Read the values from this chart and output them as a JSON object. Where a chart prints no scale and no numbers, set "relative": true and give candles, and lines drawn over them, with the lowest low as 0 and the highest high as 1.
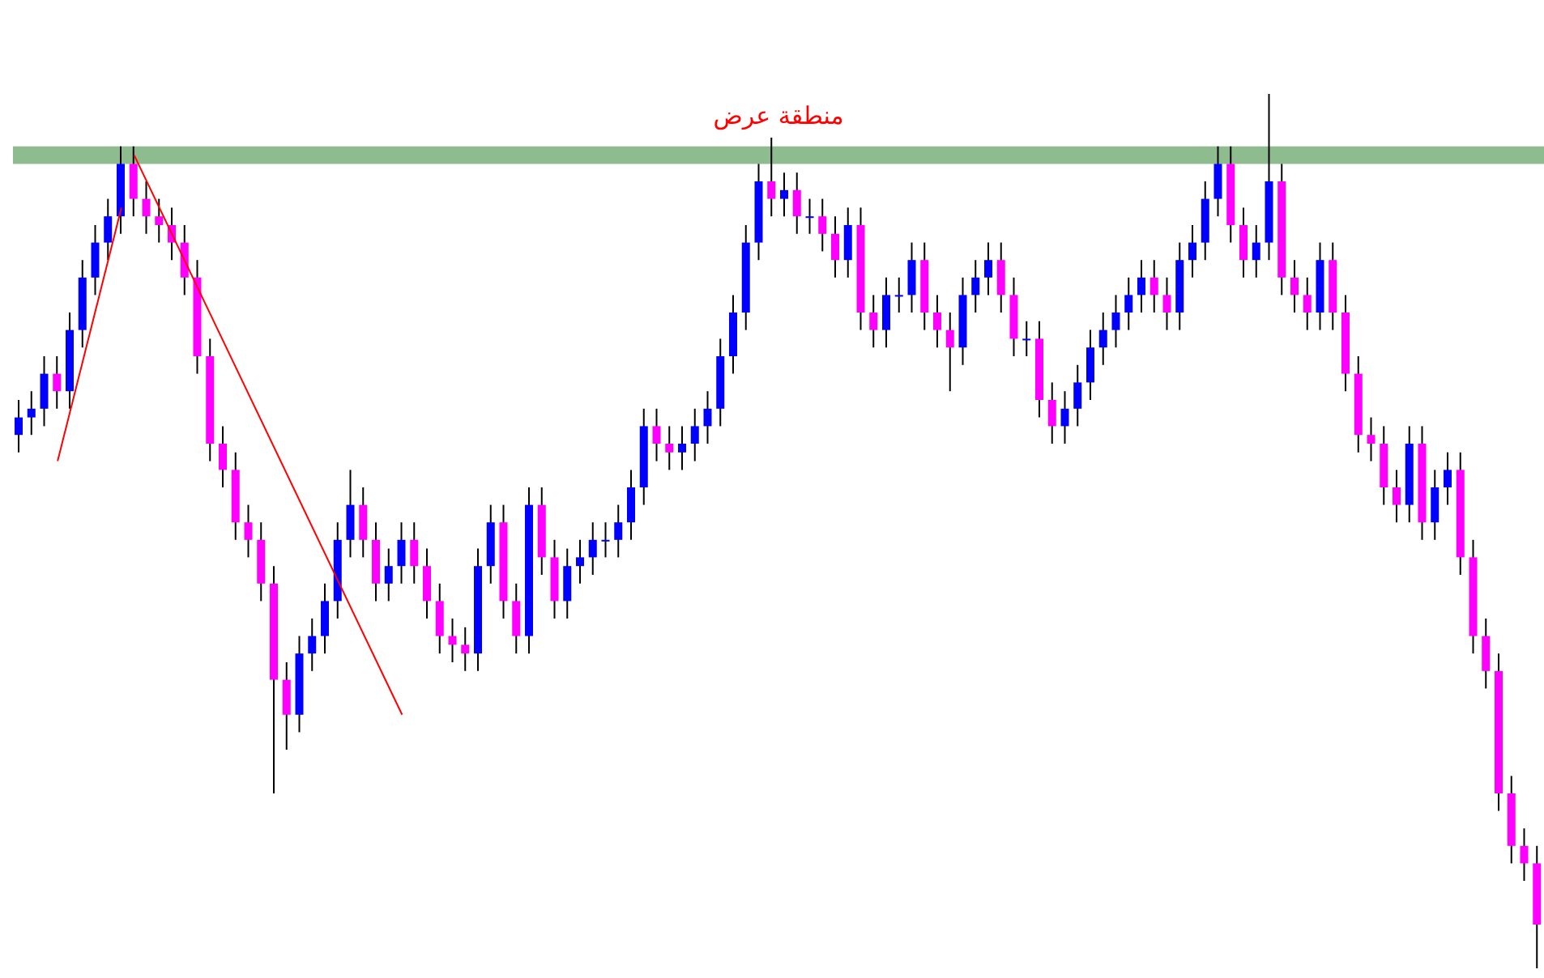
{
  "chart_data": {
    "type": "candlestick",
    "relative": true,
    "grid": false,
    "legend": false,
    "categories": [
      null,
      null,
      null,
      null,
      null,
      null,
      null,
      null,
      null,
      null,
      null,
      null,
      null,
      null,
      null,
      null,
      null,
      null,
      null,
      null,
      null,
      null,
      null,
      null,
      null,
      null,
      null,
      null,
      null,
      null,
      null,
      null,
      null,
      null,
      null,
      null,
      null,
      null,
      null,
      null,
      null,
      null,
      null,
      null,
      null,
      null,
      null,
      null,
      null,
      null,
      null,
      null,
      null,
      null,
      null,
      null,
      null,
      null,
      null,
      null,
      null,
      null,
      null,
      null,
      null,
      null,
      null,
      null,
      null,
      null,
      null,
      null,
      null,
      null,
      null,
      null,
      null,
      null,
      null,
      null,
      null,
      null,
      null,
      null,
      null,
      null,
      null,
      null,
      null,
      null,
      null,
      null,
      null,
      null,
      null,
      null,
      null,
      null,
      null,
      null,
      null,
      null,
      null,
      null,
      null,
      null,
      null,
      null,
      null,
      null,
      null,
      null,
      null,
      null,
      null,
      null,
      null,
      null,
      null,
      null
    ],
    "ohlc": [
      [
        0.61,
        0.65,
        0.59,
        0.63
      ],
      [
        0.63,
        0.66,
        0.61,
        0.64
      ],
      [
        0.64,
        0.7,
        0.62,
        0.68
      ],
      [
        0.68,
        0.7,
        0.64,
        0.66
      ],
      [
        0.66,
        0.75,
        0.64,
        0.73
      ],
      [
        0.73,
        0.81,
        0.71,
        0.79
      ],
      [
        0.79,
        0.85,
        0.77,
        0.83
      ],
      [
        0.83,
        0.88,
        0.81,
        0.86
      ],
      [
        0.86,
        0.94,
        0.84,
        0.92
      ],
      [
        0.92,
        0.94,
        0.86,
        0.88
      ],
      [
        0.88,
        0.9,
        0.84,
        0.86
      ],
      [
        0.86,
        0.88,
        0.83,
        0.85
      ],
      [
        0.85,
        0.87,
        0.81,
        0.83
      ],
      [
        0.83,
        0.85,
        0.77,
        0.79
      ],
      [
        0.79,
        0.81,
        0.68,
        0.7
      ],
      [
        0.7,
        0.72,
        0.58,
        0.6
      ],
      [
        0.6,
        0.62,
        0.55,
        0.57
      ],
      [
        0.57,
        0.59,
        0.49,
        0.51
      ],
      [
        0.51,
        0.53,
        0.47,
        0.49
      ],
      [
        0.49,
        0.51,
        0.42,
        0.44
      ],
      [
        0.44,
        0.46,
        0.2,
        0.33
      ],
      [
        0.33,
        0.35,
        0.25,
        0.29
      ],
      [
        0.29,
        0.38,
        0.27,
        0.36
      ],
      [
        0.36,
        0.4,
        0.34,
        0.38
      ],
      [
        0.38,
        0.44,
        0.36,
        0.42
      ],
      [
        0.42,
        0.51,
        0.4,
        0.49
      ],
      [
        0.49,
        0.57,
        0.47,
        0.53
      ],
      [
        0.53,
        0.55,
        0.47,
        0.49
      ],
      [
        0.49,
        0.51,
        0.42,
        0.44
      ],
      [
        0.44,
        0.48,
        0.42,
        0.46
      ],
      [
        0.46,
        0.51,
        0.44,
        0.49
      ],
      [
        0.49,
        0.51,
        0.44,
        0.46
      ],
      [
        0.46,
        0.48,
        0.4,
        0.42
      ],
      [
        0.42,
        0.44,
        0.36,
        0.38
      ],
      [
        0.38,
        0.4,
        0.35,
        0.37
      ],
      [
        0.37,
        0.39,
        0.34,
        0.36
      ],
      [
        0.36,
        0.48,
        0.34,
        0.46
      ],
      [
        0.46,
        0.53,
        0.44,
        0.51
      ],
      [
        0.51,
        0.53,
        0.4,
        0.42
      ],
      [
        0.42,
        0.44,
        0.36,
        0.38
      ],
      [
        0.38,
        0.55,
        0.36,
        0.53
      ],
      [
        0.53,
        0.55,
        0.45,
        0.47
      ],
      [
        0.47,
        0.49,
        0.4,
        0.42
      ],
      [
        0.42,
        0.48,
        0.4,
        0.46
      ],
      [
        0.46,
        0.49,
        0.44,
        0.47
      ],
      [
        0.47,
        0.51,
        0.45,
        0.49
      ],
      [
        0.49,
        0.51,
        0.47,
        0.49
      ],
      [
        0.49,
        0.53,
        0.47,
        0.51
      ],
      [
        0.51,
        0.57,
        0.49,
        0.55
      ],
      [
        0.55,
        0.64,
        0.53,
        0.62
      ],
      [
        0.62,
        0.64,
        0.58,
        0.6
      ],
      [
        0.6,
        0.62,
        0.57,
        0.59
      ],
      [
        0.59,
        0.62,
        0.57,
        0.6
      ],
      [
        0.6,
        0.64,
        0.58,
        0.62
      ],
      [
        0.62,
        0.66,
        0.6,
        0.64
      ],
      [
        0.64,
        0.72,
        0.62,
        0.7
      ],
      [
        0.7,
        0.77,
        0.68,
        0.75
      ],
      [
        0.75,
        0.85,
        0.73,
        0.83
      ],
      [
        0.83,
        0.92,
        0.81,
        0.9
      ],
      [
        0.9,
        0.95,
        0.86,
        0.88
      ],
      [
        0.88,
        0.91,
        0.86,
        0.89
      ],
      [
        0.89,
        0.91,
        0.84,
        0.86
      ],
      [
        0.86,
        0.88,
        0.84,
        0.86
      ],
      [
        0.86,
        0.88,
        0.82,
        0.84
      ],
      [
        0.84,
        0.86,
        0.79,
        0.81
      ],
      [
        0.81,
        0.87,
        0.79,
        0.85
      ],
      [
        0.85,
        0.87,
        0.73,
        0.75
      ],
      [
        0.75,
        0.77,
        0.71,
        0.73
      ],
      [
        0.73,
        0.79,
        0.71,
        0.77
      ],
      [
        0.77,
        0.79,
        0.75,
        0.77
      ],
      [
        0.77,
        0.83,
        0.75,
        0.81
      ],
      [
        0.81,
        0.83,
        0.73,
        0.75
      ],
      [
        0.75,
        0.77,
        0.71,
        0.73
      ],
      [
        0.73,
        0.75,
        0.66,
        0.71
      ],
      [
        0.71,
        0.79,
        0.69,
        0.77
      ],
      [
        0.77,
        0.81,
        0.75,
        0.79
      ],
      [
        0.79,
        0.83,
        0.77,
        0.81
      ],
      [
        0.81,
        0.83,
        0.75,
        0.77
      ],
      [
        0.77,
        0.79,
        0.7,
        0.72
      ],
      [
        0.72,
        0.74,
        0.7,
        0.72
      ],
      [
        0.72,
        0.74,
        0.63,
        0.65
      ],
      [
        0.65,
        0.67,
        0.6,
        0.62
      ],
      [
        0.62,
        0.66,
        0.6,
        0.64
      ],
      [
        0.64,
        0.69,
        0.62,
        0.67
      ],
      [
        0.67,
        0.73,
        0.65,
        0.71
      ],
      [
        0.71,
        0.75,
        0.69,
        0.73
      ],
      [
        0.73,
        0.77,
        0.71,
        0.75
      ],
      [
        0.75,
        0.79,
        0.73,
        0.77
      ],
      [
        0.77,
        0.81,
        0.75,
        0.79
      ],
      [
        0.79,
        0.81,
        0.75,
        0.77
      ],
      [
        0.77,
        0.79,
        0.73,
        0.75
      ],
      [
        0.75,
        0.83,
        0.73,
        0.81
      ],
      [
        0.81,
        0.85,
        0.79,
        0.83
      ],
      [
        0.83,
        0.9,
        0.81,
        0.88
      ],
      [
        0.88,
        0.94,
        0.86,
        0.92
      ],
      [
        0.92,
        0.94,
        0.83,
        0.85
      ],
      [
        0.85,
        0.87,
        0.79,
        0.81
      ],
      [
        0.81,
        0.85,
        0.79,
        0.83
      ],
      [
        0.83,
        1.0,
        0.81,
        0.9
      ],
      [
        0.9,
        0.92,
        0.77,
        0.79
      ],
      [
        0.79,
        0.81,
        0.75,
        0.77
      ],
      [
        0.77,
        0.79,
        0.73,
        0.75
      ],
      [
        0.75,
        0.83,
        0.73,
        0.81
      ],
      [
        0.81,
        0.83,
        0.73,
        0.75
      ],
      [
        0.75,
        0.77,
        0.66,
        0.68
      ],
      [
        0.68,
        0.7,
        0.59,
        0.61
      ],
      [
        0.61,
        0.63,
        0.58,
        0.6
      ],
      [
        0.6,
        0.62,
        0.53,
        0.55
      ],
      [
        0.55,
        0.57,
        0.51,
        0.53
      ],
      [
        0.53,
        0.62,
        0.51,
        0.6
      ],
      [
        0.6,
        0.62,
        0.49,
        0.51
      ],
      [
        0.51,
        0.57,
        0.49,
        0.55
      ],
      [
        0.55,
        0.59,
        0.53,
        0.57
      ],
      [
        0.57,
        0.59,
        0.45,
        0.47
      ],
      [
        0.47,
        0.49,
        0.36,
        0.38
      ],
      [
        0.38,
        0.4,
        0.32,
        0.34
      ],
      [
        0.34,
        0.36,
        0.18,
        0.2
      ],
      [
        0.2,
        0.22,
        0.12,
        0.14
      ],
      [
        0.14,
        0.16,
        0.1,
        0.12
      ],
      [
        0.12,
        0.14,
        0.0,
        0.05
      ]
    ],
    "colors": [
      "#0000ff",
      "#0000ff",
      "#0000ff",
      "#ff00ff",
      "#0000ff",
      "#0000ff",
      "#0000ff",
      "#0000ff",
      "#0000ff",
      "#ff00ff",
      "#ff00ff",
      "#ff00ff",
      "#ff00ff",
      "#ff00ff",
      "#ff00ff",
      "#ff00ff",
      "#ff00ff",
      "#ff00ff",
      "#ff00ff",
      "#ff00ff",
      "#ff00ff",
      "#ff00ff",
      "#0000ff",
      "#0000ff",
      "#0000ff",
      "#0000ff",
      "#0000ff",
      "#ff00ff",
      "#ff00ff",
      "#0000ff",
      "#0000ff",
      "#ff00ff",
      "#ff00ff",
      "#ff00ff",
      "#ff00ff",
      "#ff00ff",
      "#0000ff",
      "#0000ff",
      "#ff00ff",
      "#ff00ff",
      "#0000ff",
      "#ff00ff",
      "#ff00ff",
      "#0000ff",
      "#0000ff",
      "#0000ff",
      "#0000ff",
      "#0000ff",
      "#0000ff",
      "#0000ff",
      "#ff00ff",
      "#ff00ff",
      "#0000ff",
      "#0000ff",
      "#0000ff",
      "#0000ff",
      "#0000ff",
      "#0000ff",
      "#0000ff",
      "#ff00ff",
      "#0000ff",
      "#ff00ff",
      "#0000ff",
      "#ff00ff",
      "#ff00ff",
      "#0000ff",
      "#ff00ff",
      "#ff00ff",
      "#0000ff",
      "#0000ff",
      "#0000ff",
      "#ff00ff",
      "#ff00ff",
      "#ff00ff",
      "#0000ff",
      "#0000ff",
      "#0000ff",
      "#ff00ff",
      "#ff00ff",
      "#0000ff",
      "#ff00ff",
      "#ff00ff",
      "#0000ff",
      "#0000ff",
      "#0000ff",
      "#0000ff",
      "#0000ff",
      "#0000ff",
      "#0000ff",
      "#ff00ff",
      "#ff00ff",
      "#0000ff",
      "#0000ff",
      "#0000ff",
      "#0000ff",
      "#ff00ff",
      "#ff00ff",
      "#0000ff",
      "#0000ff",
      "#ff00ff",
      "#ff00ff",
      "#ff00ff",
      "#0000ff",
      "#ff00ff",
      "#ff00ff",
      "#ff00ff",
      "#ff00ff",
      "#ff00ff",
      "#ff00ff",
      "#0000ff",
      "#ff00ff",
      "#0000ff",
      "#0000ff",
      "#ff00ff",
      "#ff00ff",
      "#ff00ff",
      "#ff00ff",
      "#ff00ff",
      "#ff00ff",
      "#ff00ff"
    ],
    "series": [
      {
        "type": "line",
        "color": "#ff0000",
        "values": [
          null,
          null,
          null,
          0.58,
          null,
          null,
          null,
          null,
          0.87,
          null,
          null,
          null,
          null,
          null,
          null,
          null,
          null,
          null,
          null,
          null,
          null,
          null,
          null,
          null,
          null,
          null,
          null,
          null,
          null,
          null,
          null,
          null,
          null,
          null,
          null,
          null,
          null,
          null,
          null,
          null,
          null,
          null,
          null,
          null,
          null,
          null,
          null,
          null,
          null,
          null,
          null,
          null,
          null,
          null,
          null,
          null,
          null,
          null,
          null,
          null,
          null,
          null,
          null,
          null,
          null,
          null,
          null,
          null,
          null,
          null,
          null,
          null,
          null,
          null,
          null,
          null,
          null,
          null,
          null,
          null,
          null,
          null,
          null,
          null,
          null,
          null,
          null,
          null,
          null,
          null,
          null,
          null,
          null,
          null,
          null,
          null,
          null,
          null,
          null,
          null,
          null,
          null,
          null,
          null,
          null,
          null,
          null,
          null,
          null,
          null,
          null,
          null,
          null,
          null,
          null,
          null,
          null,
          null,
          null,
          null
        ]
      },
      {
        "type": "line",
        "color": "#ff0000",
        "values": [
          null,
          null,
          null,
          null,
          null,
          null,
          null,
          null,
          null,
          0.93,
          null,
          null,
          null,
          null,
          null,
          null,
          null,
          null,
          null,
          null,
          null,
          null,
          null,
          null,
          null,
          null,
          null,
          null,
          null,
          null,
          0.29,
          null,
          null,
          null,
          null,
          null,
          null,
          null,
          null,
          null,
          null,
          null,
          null,
          null,
          null,
          null,
          null,
          null,
          null,
          null,
          null,
          null,
          null,
          null,
          null,
          null,
          null,
          null,
          null,
          null,
          null,
          null,
          null,
          null,
          null,
          null,
          null,
          null,
          null,
          null,
          null,
          null,
          null,
          null,
          null,
          null,
          null,
          null,
          null,
          null,
          null,
          null,
          null,
          null,
          null,
          null,
          null,
          null,
          null,
          null,
          null,
          null,
          null,
          null,
          null,
          null,
          null,
          null,
          null,
          null,
          null,
          null,
          null,
          null,
          null,
          null,
          null,
          null,
          null,
          null,
          null,
          null,
          null,
          null,
          null,
          null,
          null,
          null,
          null,
          null
        ]
      }
    ],
    "bands": [
      {
        "axis": "y",
        "from": 0.92,
        "to": 0.94,
        "label": "منطقة عرض",
        "color": "#8fbc8f"
      }
    ]
  }
}
